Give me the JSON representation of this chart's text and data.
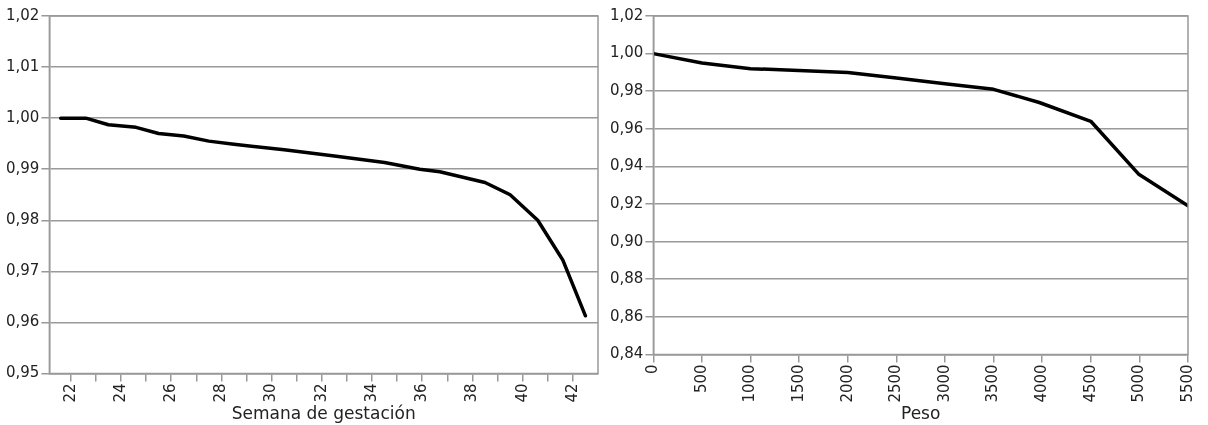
{
  "chart_data": [
    {
      "type": "line",
      "xlabel": "Semana de gestación",
      "xlim": [
        21.15,
        43
      ],
      "xticks": [
        22,
        {
          "value": 23,
          "label": null
        },
        24,
        {
          "value": 25,
          "label": null
        },
        26,
        {
          "value": 27,
          "label": null
        },
        28,
        {
          "value": 29,
          "label": null
        },
        30,
        {
          "value": 31,
          "label": null
        },
        32,
        {
          "value": 33,
          "label": null
        },
        34,
        {
          "value": 35,
          "label": null
        },
        36,
        {
          "value": 37,
          "label": null
        },
        38,
        {
          "value": 39,
          "label": null
        },
        40,
        {
          "value": 41,
          "label": null
        },
        42
      ],
      "ylim": [
        0.95,
        1.02
      ],
      "yticks": [
        {
          "value": 0.95,
          "label": "0,95"
        },
        {
          "value": 0.96,
          "label": "0,96"
        },
        {
          "value": 0.97,
          "label": "0,97"
        },
        {
          "value": 0.98,
          "label": "0,98"
        },
        {
          "value": 0.99,
          "label": "0,99"
        },
        {
          "value": 1.0,
          "label": "1,00"
        },
        {
          "value": 1.01,
          "label": "1,01"
        },
        {
          "value": 1.02,
          "label": "1,02"
        }
      ],
      "grid": "y",
      "legend": false,
      "marker": "none",
      "line_style": "solid",
      "series": [
        {
          "color": "#000000",
          "x": [
            21.6,
            22.6,
            23.5,
            24.6,
            25.5,
            26.5,
            27.5,
            28.5,
            30.5,
            32.5,
            34.5,
            35.9,
            36.7,
            38.5,
            39.5,
            40.6,
            41.6,
            42.5
          ],
          "values": [
            1.0,
            1.0,
            0.9987,
            0.9982,
            0.997,
            0.9965,
            0.9955,
            0.9949,
            0.9938,
            0.9926,
            0.9913,
            0.99,
            0.9895,
            0.9874,
            0.985,
            0.98,
            0.9722,
            0.9613
          ]
        }
      ]
    },
    {
      "type": "line",
      "xlabel": "Peso",
      "xlim": [
        0,
        5500
      ],
      "xticks": [
        0,
        500,
        1000,
        1500,
        2000,
        2500,
        3000,
        3500,
        4000,
        4500,
        5000,
        5500
      ],
      "ylim": [
        0.84,
        1.02
      ],
      "yticks": [
        {
          "value": 0.84,
          "label": "0,84"
        },
        {
          "value": 0.86,
          "label": "0,86"
        },
        {
          "value": 0.88,
          "label": "0,88"
        },
        {
          "value": 0.9,
          "label": "0,90"
        },
        {
          "value": 0.92,
          "label": "0,92"
        },
        {
          "value": 0.94,
          "label": "0,94"
        },
        {
          "value": 0.96,
          "label": "0,96"
        },
        {
          "value": 0.98,
          "label": "0,98"
        },
        {
          "value": 1.0,
          "label": "1,00"
        },
        {
          "value": 1.02,
          "label": "1,02"
        }
      ],
      "grid": "y",
      "legend": false,
      "marker": "none",
      "line_style": "solid",
      "series": [
        {
          "color": "#000000",
          "x": [
            0,
            500,
            1000,
            2000,
            2500,
            3000,
            3500,
            3970,
            4500,
            4990,
            5500
          ],
          "values": [
            1.0,
            0.995,
            0.992,
            0.99,
            0.987,
            0.984,
            0.981,
            0.974,
            0.964,
            0.936,
            0.919
          ]
        }
      ]
    }
  ]
}
